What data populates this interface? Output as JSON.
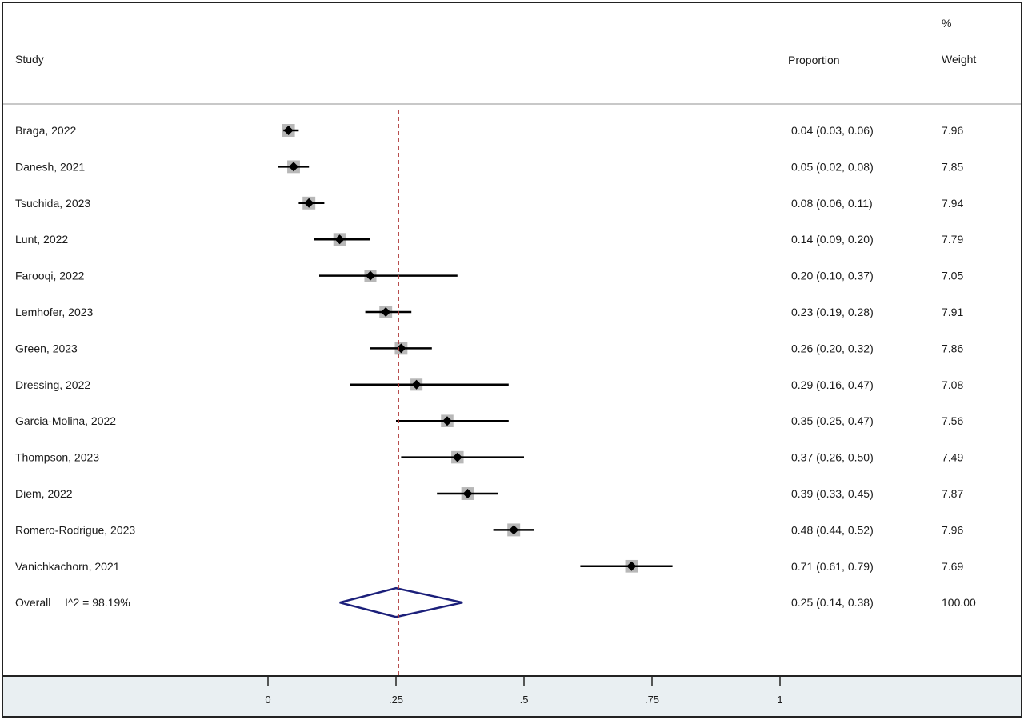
{
  "chart_data": {
    "type": "forest",
    "headers": {
      "study": "Study",
      "proportion": "Proportion",
      "weight_top": "%",
      "weight": "Weight"
    },
    "studies": [
      {
        "label": "Braga, 2022",
        "estimate": 0.04,
        "lower": 0.03,
        "upper": 0.06,
        "ci_text": "0.04 (0.03, 0.06)",
        "weight": 7.96,
        "weight_text": "7.96"
      },
      {
        "label": "Danesh, 2021",
        "estimate": 0.05,
        "lower": 0.02,
        "upper": 0.08,
        "ci_text": "0.05 (0.02, 0.08)",
        "weight": 7.85,
        "weight_text": "7.85"
      },
      {
        "label": "Tsuchida, 2023",
        "estimate": 0.08,
        "lower": 0.06,
        "upper": 0.11,
        "ci_text": "0.08 (0.06, 0.11)",
        "weight": 7.94,
        "weight_text": "7.94"
      },
      {
        "label": "Lunt, 2022",
        "estimate": 0.14,
        "lower": 0.09,
        "upper": 0.2,
        "ci_text": "0.14 (0.09, 0.20)",
        "weight": 7.79,
        "weight_text": "7.79"
      },
      {
        "label": "Farooqi, 2022",
        "estimate": 0.2,
        "lower": 0.1,
        "upper": 0.37,
        "ci_text": "0.20 (0.10, 0.37)",
        "weight": 7.05,
        "weight_text": "7.05"
      },
      {
        "label": "Lemhofer, 2023",
        "estimate": 0.23,
        "lower": 0.19,
        "upper": 0.28,
        "ci_text": "0.23 (0.19, 0.28)",
        "weight": 7.91,
        "weight_text": "7.91"
      },
      {
        "label": "Green, 2023",
        "estimate": 0.26,
        "lower": 0.2,
        "upper": 0.32,
        "ci_text": "0.26 (0.20, 0.32)",
        "weight": 7.86,
        "weight_text": "7.86"
      },
      {
        "label": "Dressing, 2022",
        "estimate": 0.29,
        "lower": 0.16,
        "upper": 0.47,
        "ci_text": "0.29 (0.16, 0.47)",
        "weight": 7.08,
        "weight_text": "7.08"
      },
      {
        "label": "Garcia-Molina, 2022",
        "estimate": 0.35,
        "lower": 0.25,
        "upper": 0.47,
        "ci_text": "0.35 (0.25, 0.47)",
        "weight": 7.56,
        "weight_text": "7.56"
      },
      {
        "label": "Thompson, 2023",
        "estimate": 0.37,
        "lower": 0.26,
        "upper": 0.5,
        "ci_text": "0.37 (0.26, 0.50)",
        "weight": 7.49,
        "weight_text": "7.49"
      },
      {
        "label": "Diem, 2022",
        "estimate": 0.39,
        "lower": 0.33,
        "upper": 0.45,
        "ci_text": "0.39 (0.33, 0.45)",
        "weight": 7.87,
        "weight_text": "7.87"
      },
      {
        "label": "Romero-Rodrigue, 2023",
        "estimate": 0.48,
        "lower": 0.44,
        "upper": 0.52,
        "ci_text": "0.48 (0.44, 0.52)",
        "weight": 7.96,
        "weight_text": "7.96"
      },
      {
        "label": "Vanichkachorn, 2021",
        "estimate": 0.71,
        "lower": 0.61,
        "upper": 0.79,
        "ci_text": "0.71 (0.61, 0.79)",
        "weight": 7.69,
        "weight_text": "7.69"
      }
    ],
    "overall": {
      "label": "Overall",
      "heterogeneity": "I^2 = 98.19%",
      "estimate": 0.25,
      "lower": 0.14,
      "upper": 0.38,
      "ci_text": "0.25 (0.14, 0.38)",
      "weight_text": "100.00"
    },
    "x_axis": {
      "xlim": [
        0,
        1
      ],
      "ticks": [
        0,
        0.25,
        0.5,
        0.75,
        1
      ],
      "tick_labels": [
        "0",
        ".25",
        ".5",
        ".75",
        "1"
      ]
    },
    "reference_line": 0.25,
    "colors": {
      "point": "#000000",
      "weight_box": "#b8b8b8",
      "ci_line": "#000000",
      "overall_diamond": "#1b1f7a",
      "reference_line": "#b03a3a",
      "axis_band": "#e9eff2",
      "border": "#222222",
      "header_rule": "#c8c8c8"
    }
  }
}
